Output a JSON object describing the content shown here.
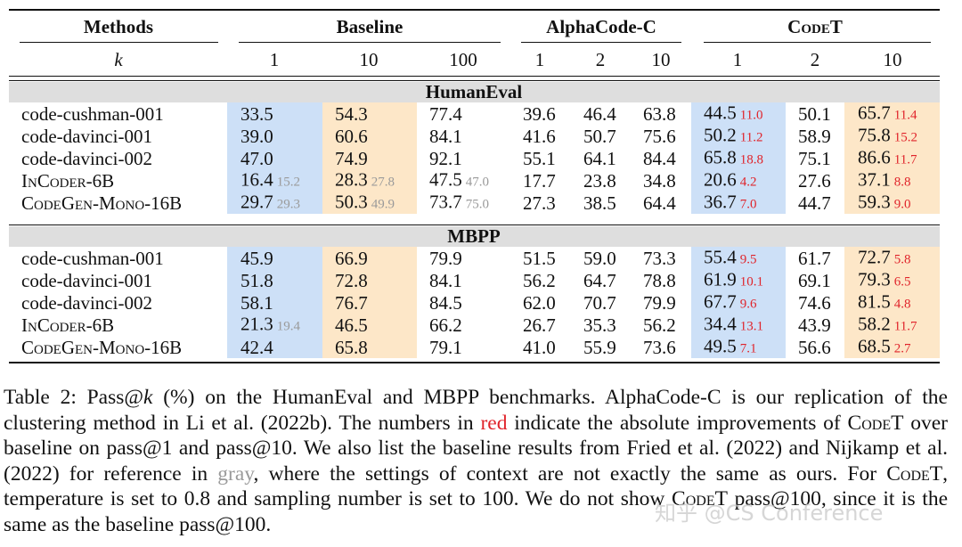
{
  "header": {
    "methods": "Methods",
    "groups": [
      "Baseline",
      "AlphaCode-C",
      "CodeT"
    ],
    "k_label": "k",
    "ks": [
      "1",
      "10",
      "100",
      "1",
      "2",
      "10",
      "1",
      "2",
      "10"
    ]
  },
  "sections": [
    {
      "title": "HumanEval",
      "rows": [
        {
          "method": "code-cushman-001",
          "cells": [
            "33.5",
            "54.3",
            "77.4",
            "39.6",
            "46.4",
            "63.8",
            {
              "value": "44.5",
              "red": "11.0"
            },
            "50.1",
            {
              "value": "65.7",
              "red": "11.4"
            }
          ]
        },
        {
          "method": "code-davinci-001",
          "cells": [
            "39.0",
            "60.6",
            "84.1",
            "41.6",
            "50.7",
            "75.6",
            {
              "value": "50.2",
              "red": "11.2"
            },
            "58.9",
            {
              "value": "75.8",
              "red": "15.2"
            }
          ]
        },
        {
          "method": "code-davinci-002",
          "cells": [
            "47.0",
            "74.9",
            "92.1",
            "55.1",
            "64.1",
            "84.4",
            {
              "value": "65.8",
              "red": "18.8"
            },
            "75.1",
            {
              "value": "86.6",
              "red": "11.7"
            }
          ]
        },
        {
          "method": "InCoder-6B",
          "smallcaps": true,
          "cells": [
            {
              "value": "16.4",
              "gray": "15.2"
            },
            {
              "value": "28.3",
              "gray": "27.8"
            },
            {
              "value": "47.5",
              "gray": "47.0"
            },
            "17.7",
            "23.8",
            "34.8",
            {
              "value": "20.6",
              "red": "4.2"
            },
            "27.6",
            {
              "value": "37.1",
              "red": "8.8"
            }
          ]
        },
        {
          "method": "CodeGen-Mono-16B",
          "smallcaps": true,
          "cells": [
            {
              "value": "29.7",
              "gray": "29.3"
            },
            {
              "value": "50.3",
              "gray": "49.9"
            },
            {
              "value": "73.7",
              "gray": "75.0"
            },
            "27.3",
            "38.5",
            "64.4",
            {
              "value": "36.7",
              "red": "7.0"
            },
            "44.7",
            {
              "value": "59.3",
              "red": "9.0"
            }
          ]
        }
      ]
    },
    {
      "title": "MBPP",
      "rows": [
        {
          "method": "code-cushman-001",
          "cells": [
            "45.9",
            "66.9",
            "79.9",
            "51.5",
            "59.0",
            "73.3",
            {
              "value": "55.4",
              "red": "9.5"
            },
            "61.7",
            {
              "value": "72.7",
              "red": "5.8"
            }
          ]
        },
        {
          "method": "code-davinci-001",
          "cells": [
            "51.8",
            "72.8",
            "84.1",
            "56.2",
            "64.7",
            "78.8",
            {
              "value": "61.9",
              "red": "10.1"
            },
            "69.1",
            {
              "value": "79.3",
              "red": "6.5"
            }
          ]
        },
        {
          "method": "code-davinci-002",
          "cells": [
            "58.1",
            "76.7",
            "84.5",
            "62.0",
            "70.7",
            "79.9",
            {
              "value": "67.7",
              "red": "9.6"
            },
            "74.6",
            {
              "value": "81.5",
              "red": "4.8"
            }
          ]
        },
        {
          "method": "InCoder-6B",
          "smallcaps": true,
          "cells": [
            {
              "value": "21.3",
              "gray": "19.4"
            },
            "46.5",
            "66.2",
            "26.7",
            "35.3",
            "56.2",
            {
              "value": "34.4",
              "red": "13.1"
            },
            "43.9",
            {
              "value": "58.2",
              "red": "11.7"
            }
          ]
        },
        {
          "method": "CodeGen-Mono-16B",
          "smallcaps": true,
          "cells": [
            "42.4",
            "65.8",
            "79.1",
            "41.0",
            "55.9",
            "73.6",
            {
              "value": "49.5",
              "red": "7.1"
            },
            "56.6",
            {
              "value": "68.5",
              "red": "2.7"
            }
          ]
        }
      ]
    }
  ],
  "caption": [
    {
      "text": "Table 2: Pass@"
    },
    {
      "text": "k",
      "style": "italic"
    },
    {
      "text": " (%) on the HumanEval and MBPP benchmarks. AlphaCode-C is our replication of the clustering method in Li et al. (2022b). The numbers in "
    },
    {
      "text": "red",
      "style": "red"
    },
    {
      "text": " indicate the absolute improvements of "
    },
    {
      "text": "CodeT",
      "style": "smallcaps"
    },
    {
      "text": " over baseline on pass@1 and pass@10. We also list the baseline results from Fried et al. (2022) and Nijkamp et al. (2022) for reference in "
    },
    {
      "text": "gray",
      "style": "gray"
    },
    {
      "text": ", where the settings of context are not exactly the same as ours. For "
    },
    {
      "text": "CodeT",
      "style": "smallcaps"
    },
    {
      "text": ", temperature is set to 0.8 and sampling number is set to 100. We do not show "
    },
    {
      "text": "CodeT",
      "style": "smallcaps"
    },
    {
      "text": " pass@100, since it is the same as the baseline pass@100."
    }
  ],
  "watermark": "知乎 @CS Conference"
}
